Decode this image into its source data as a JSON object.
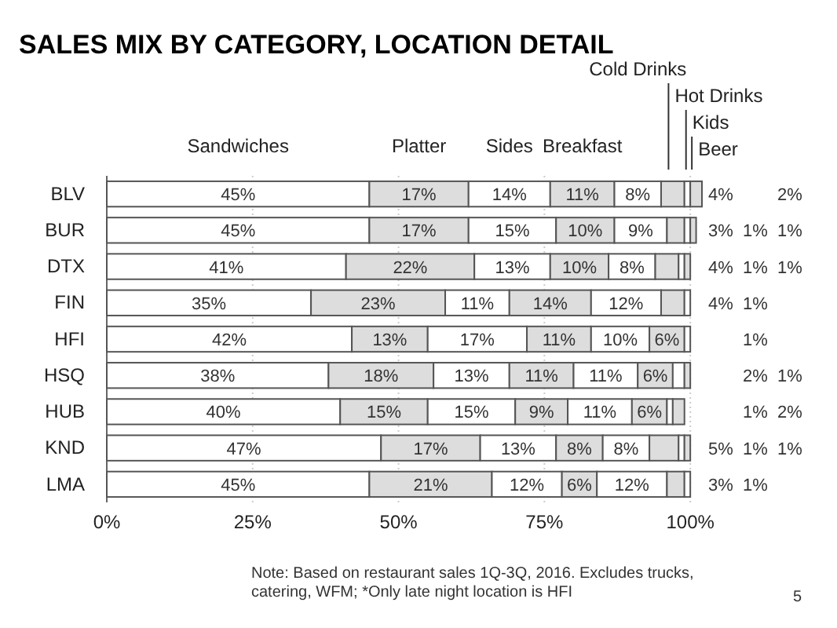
{
  "chart_data": {
    "type": "bar",
    "orientation": "horizontal",
    "stacked": true,
    "title": "SALES MIX BY CATEGORY, LOCATION DETAIL",
    "categories": [
      "BLV",
      "BUR",
      "DTX",
      "FIN",
      "HFI",
      "HSQ",
      "HUB",
      "KND",
      "LMA"
    ],
    "series": [
      {
        "name": "Sandwiches",
        "color": "#ffffff",
        "values": [
          45,
          45,
          41,
          35,
          42,
          38,
          40,
          47,
          45
        ],
        "value_labels": [
          "45%",
          "45%",
          "41%",
          "35%",
          "42%",
          "38%",
          "40%",
          "47%",
          "45%"
        ]
      },
      {
        "name": "Platter",
        "color": "#dddddd",
        "values": [
          17,
          17,
          22,
          23,
          13,
          18,
          15,
          17,
          21
        ],
        "value_labels": [
          "17%",
          "17%",
          "22%",
          "23%",
          "13%",
          "18%",
          "15%",
          "17%",
          "21%"
        ]
      },
      {
        "name": "Sides",
        "color": "#ffffff",
        "values": [
          14,
          15,
          13,
          11,
          17,
          13,
          15,
          13,
          12
        ],
        "value_labels": [
          "14%",
          "15%",
          "13%",
          "11%",
          "17%",
          "13%",
          "15%",
          "13%",
          "12%"
        ]
      },
      {
        "name": "Breakfast",
        "color": "#dddddd",
        "values": [
          11,
          10,
          10,
          14,
          11,
          11,
          9,
          8,
          6
        ],
        "value_labels": [
          "11%",
          "10%",
          "10%",
          "14%",
          "11%",
          "11%",
          "9%",
          "8%",
          "6%"
        ]
      },
      {
        "name": "Cold Drinks",
        "color": "#ffffff",
        "values": [
          8,
          9,
          8,
          12,
          10,
          11,
          11,
          8,
          12
        ],
        "value_labels": [
          "8%",
          "9%",
          "8%",
          "12%",
          "10%",
          "11%",
          "11%",
          "8%",
          "12%"
        ]
      },
      {
        "name": "Hot Drinks",
        "color": "#dddddd",
        "values": [
          4,
          3,
          4,
          4,
          6,
          6,
          6,
          5,
          3
        ],
        "value_labels": [
          "4%",
          "3%",
          "4%",
          "4%",
          "6%",
          "6%",
          "6%",
          "5%",
          "3%"
        ]
      },
      {
        "name": "Kids",
        "color": "#ffffff",
        "values": [
          1,
          1,
          1,
          1,
          1,
          2,
          1,
          1,
          1
        ],
        "value_labels": [
          null,
          "1%",
          "1%",
          "1%",
          "1%",
          "2%",
          "1%",
          "1%",
          "1%"
        ]
      },
      {
        "name": "Beer",
        "color": "#dddddd",
        "values": [
          2,
          1,
          1,
          null,
          null,
          1,
          2,
          1,
          null
        ],
        "value_labels": [
          "2%",
          "1%",
          "1%",
          null,
          null,
          "1%",
          "2%",
          "1%",
          null
        ]
      }
    ],
    "xlim": [
      0,
      102
    ],
    "xticks": [
      {
        "value": 0,
        "label": "0%"
      },
      {
        "value": 25,
        "label": "25%"
      },
      {
        "value": 50,
        "label": "50%"
      },
      {
        "value": 75,
        "label": "75%"
      },
      {
        "value": 100,
        "label": "100%"
      }
    ],
    "grid": "x",
    "annotations": [
      "Note: Based on restaurant sales 1Q-3Q, 2016. Excludes trucks, catering, WFM; *Only late night location is HFI",
      "5"
    ]
  }
}
